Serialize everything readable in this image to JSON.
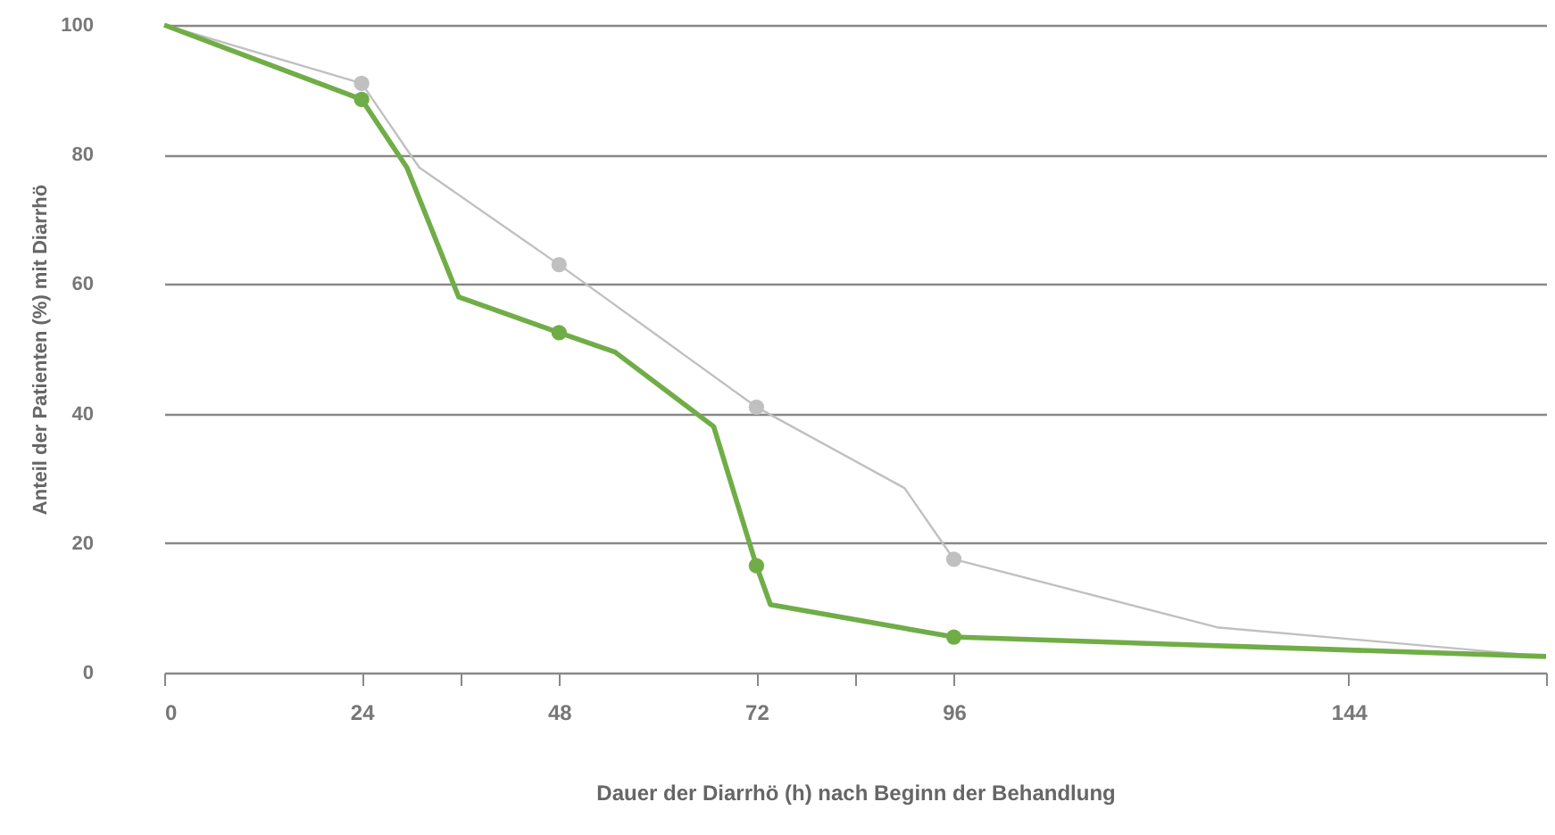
{
  "chart_data": {
    "type": "line",
    "xlabel": "Dauer der Diarrhö (h) nach Beginn der Behandlung",
    "ylabel": "Anteil der Patienten (%) mit Diarrhö",
    "xlim": [
      0,
      168
    ],
    "xticks": [
      0,
      24,
      {
        "value": 36,
        "label": null
      },
      48,
      72,
      {
        "value": 84,
        "label": null
      },
      96,
      144,
      {
        "value": 168,
        "label": null
      }
    ],
    "ylim": [
      0,
      100
    ],
    "yticks": [
      0,
      20,
      40,
      60,
      80,
      100
    ],
    "grid": "y",
    "line_style": "solid",
    "marker": "none",
    "series": [
      {
        "color": "#c0c0c0",
        "x": [
          0,
          24,
          31,
          48,
          72,
          90,
          96,
          128,
          168
        ],
        "values": [
          100,
          91,
          78,
          63,
          41,
          28.5,
          17.5,
          7,
          2.5
        ]
      },
      {
        "color": "#70ad47",
        "x": [
          0,
          24,
          29.5,
          35.8,
          48,
          54.8,
          66.8,
          72,
          73.7,
          96,
          168
        ],
        "values": [
          100,
          88.5,
          78,
          58,
          52.5,
          49.5,
          38,
          16.5,
          10.5,
          5.5,
          2.5
        ]
      },
      {
        "type": "scatter",
        "marker": "circle",
        "color": "#c0c0c0",
        "x": [
          24,
          48,
          72,
          96
        ],
        "values": [
          91,
          63,
          41,
          17.5
        ]
      },
      {
        "type": "scatter",
        "marker": "circle",
        "color": "#70ad47",
        "x": [
          24,
          48,
          72,
          96
        ],
        "values": [
          88.5,
          52.5,
          16.5,
          5.5
        ]
      }
    ]
  }
}
